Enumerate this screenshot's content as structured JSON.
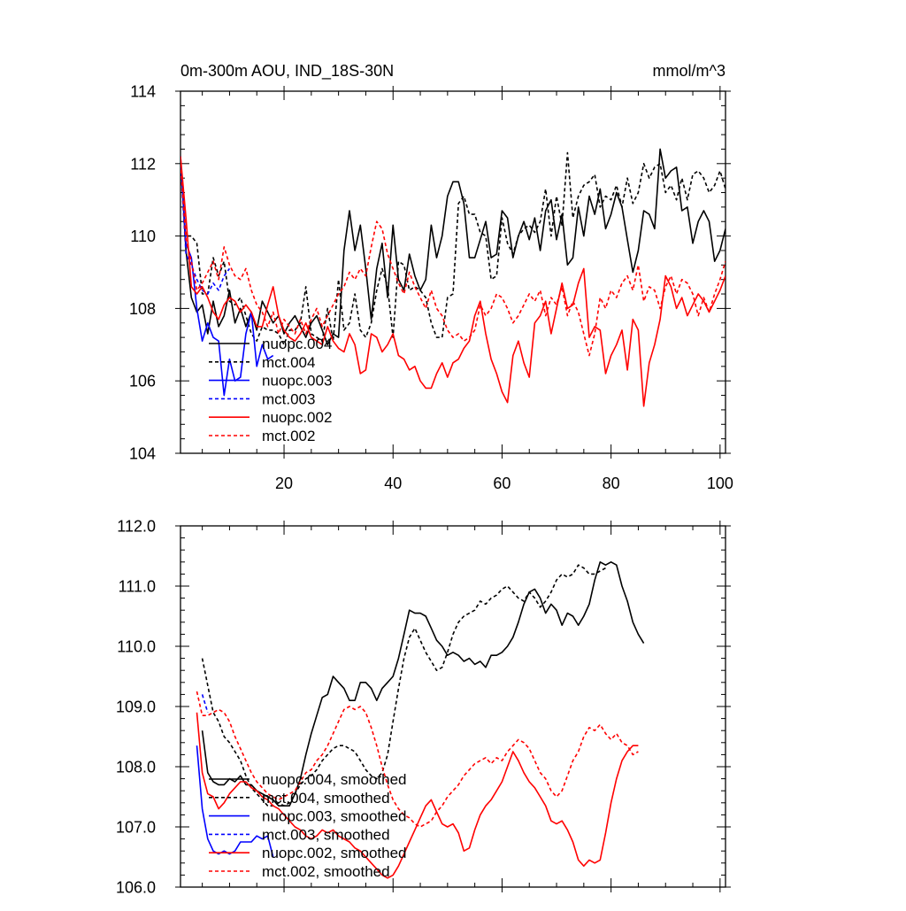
{
  "chart_data": [
    {
      "type": "line",
      "title": "0m-300m AOU, IND_18S-30N",
      "units": "mmol/m^3",
      "xlim": [
        1,
        101
      ],
      "ylim": [
        104,
        114
      ],
      "xticks": [
        20,
        40,
        60,
        80,
        100
      ],
      "xtick_labels": [
        "20",
        "40",
        "60",
        "80",
        "100"
      ],
      "yticks": [
        104,
        106,
        108,
        110,
        112,
        114
      ],
      "ytick_labels": [
        "104",
        "106",
        "108",
        "110",
        "112",
        "114"
      ],
      "legend_position": "bottom-left",
      "series": [
        {
          "name": "nuopc.004",
          "color": "#000000",
          "dashed": false,
          "x_start": 1,
          "values": [
            112.2,
            109.6,
            108.3,
            107.9,
            108.1,
            107.3,
            108.2,
            107.5,
            107.8,
            108.5,
            107.6,
            108.0,
            107.5,
            107.9,
            107.4,
            108.2,
            107.9,
            107.6,
            107.8,
            107.3,
            107.6,
            107.8,
            107.5,
            107.2,
            107.6,
            107.8,
            107.4,
            107.0,
            107.3,
            107.2,
            109.6,
            110.7,
            109.6,
            110.3,
            109.1,
            107.7,
            109.1,
            109.8,
            108.3,
            110.3,
            108.8,
            108.5,
            109.5,
            108.9,
            108.5,
            108.8,
            110.3,
            109.4,
            110.0,
            111.1,
            111.5,
            111.5,
            110.9,
            109.4,
            109.4,
            109.9,
            110.4,
            109.4,
            109.5,
            110.7,
            110.5,
            109.4,
            110.0,
            110.4,
            109.9,
            110.5,
            109.6,
            110.7,
            111.0,
            109.9,
            110.6,
            109.2,
            109.4,
            110.8,
            110.0,
            111.1,
            110.6,
            111.3,
            110.2,
            110.6,
            111.2,
            110.8,
            109.9,
            109.0,
            109.6,
            110.7,
            110.6,
            110.2,
            112.4,
            111.6,
            111.8,
            111.9,
            110.7,
            110.8,
            109.8,
            110.4,
            110.7,
            110.4,
            109.3,
            109.6,
            110.2
          ]
        },
        {
          "name": "mct.004",
          "color": "#000000",
          "dashed": true,
          "x_start": 1,
          "values": [
            112.0,
            110.0,
            110.0,
            109.8,
            108.4,
            108.4,
            109.4,
            108.9,
            109.3,
            108.2,
            108.1,
            108.3,
            107.8,
            107.3,
            107.1,
            107.5,
            107.4,
            107.4,
            107.3,
            107.0,
            107.4,
            107.4,
            107.6,
            108.6,
            107.3,
            107.2,
            107.1,
            108.0,
            107.1,
            108.8,
            107.4,
            107.6,
            108.4,
            107.4,
            107.2,
            107.6,
            108.5,
            109.1,
            108.6,
            107.2,
            109.3,
            109.2,
            108.5,
            108.6,
            108.5,
            108.3,
            107.6,
            107.2,
            107.2,
            108.3,
            108.4,
            110.9,
            111.1,
            110.6,
            110.6,
            110.1,
            110.0,
            108.8,
            108.9,
            110.5,
            109.8,
            109.5,
            110.0,
            110.2,
            110.3,
            110.1,
            110.4,
            111.3,
            110.0,
            111.1,
            110.3,
            112.3,
            110.5,
            111.1,
            111.4,
            111.5,
            111.7,
            110.8,
            111.1,
            111.0,
            111.4,
            110.8,
            111.6,
            110.9,
            111.2,
            112.0,
            111.6,
            111.9,
            112.0,
            111.2,
            111.4,
            111.0,
            111.6,
            111.0,
            111.7,
            111.8,
            111.6,
            111.2,
            111.4,
            111.8,
            111.3
          ]
        },
        {
          "name": "nuopc.003",
          "color": "#0000ff",
          "dashed": false,
          "x_start": 1,
          "values": [
            112.2,
            109.8,
            109.4,
            108.0,
            107.1,
            107.6,
            107.2,
            107.1,
            105.6,
            106.6,
            106.0,
            106.1,
            107.3,
            107.9,
            106.4,
            107.0,
            106.6,
            106.7
          ]
        },
        {
          "name": "mct.003",
          "color": "#0000ff",
          "dashed": true,
          "x_start": 1,
          "values": [
            112.0,
            109.5,
            109.2,
            108.8,
            108.5,
            108.4,
            108.7,
            108.5,
            108.9,
            109.1
          ]
        },
        {
          "name": "nuopc.002",
          "color": "#ff0000",
          "dashed": false,
          "x_start": 1,
          "values": [
            112.2,
            110.5,
            108.6,
            108.4,
            108.6,
            108.3,
            107.9,
            107.7,
            108.1,
            108.3,
            108.2,
            107.9,
            108.1,
            107.9,
            107.5,
            107.5,
            108.1,
            108.6,
            107.8,
            107.4,
            107.2,
            107.1,
            107.3,
            107.6,
            107.2,
            107.1,
            107.0,
            107.5,
            107.1,
            106.9,
            106.8,
            107.3,
            107.0,
            106.2,
            106.3,
            107.3,
            107.2,
            106.8,
            107.0,
            107.3,
            106.7,
            106.6,
            106.3,
            106.4,
            106.0,
            105.8,
            105.8,
            106.2,
            106.5,
            106.1,
            106.5,
            106.6,
            106.9,
            107.1,
            107.8,
            108.2,
            107.3,
            106.6,
            106.2,
            105.7,
            105.4,
            106.7,
            107.1,
            106.5,
            106.1,
            107.6,
            107.8,
            108.2,
            107.3,
            108.0,
            108.7,
            108.0,
            108.1,
            108.7,
            109.1,
            107.2,
            107.5,
            107.4,
            106.2,
            106.7,
            107.0,
            107.4,
            106.3,
            107.7,
            107.4,
            105.3,
            106.5,
            107.0,
            107.7,
            108.9,
            108.6,
            108.0,
            108.3,
            107.8,
            108.1,
            108.4,
            108.2,
            107.9,
            108.2,
            108.5,
            108.9
          ]
        },
        {
          "name": "mct.002",
          "color": "#ff0000",
          "dashed": true,
          "x_start": 1,
          "values": [
            112.0,
            109.9,
            109.3,
            108.5,
            108.7,
            109.0,
            109.3,
            108.8,
            109.7,
            109.2,
            108.9,
            108.8,
            109.1,
            108.5,
            108.1,
            107.9,
            107.5,
            107.9,
            107.3,
            107.7,
            107.5,
            107.3,
            107.7,
            107.3,
            107.7,
            108.0,
            107.5,
            107.8,
            108.1,
            108.4,
            108.6,
            109.0,
            108.8,
            109.1,
            108.9,
            109.7,
            110.4,
            110.2,
            109.5,
            109.1,
            108.7,
            108.4,
            109.0,
            108.6,
            108.3,
            108.0,
            108.5,
            108.0,
            107.8,
            107.4,
            107.2,
            107.3,
            107.1,
            107.2,
            107.4,
            108.1,
            107.8,
            108.0,
            108.4,
            108.3,
            108.0,
            107.6,
            107.8,
            108.1,
            108.4,
            108.2,
            108.5,
            107.8,
            108.3,
            108.1,
            108.6,
            107.8,
            108.2,
            107.9,
            107.3,
            106.7,
            107.3,
            108.3,
            108.0,
            108.5,
            108.3,
            108.7,
            108.9,
            108.5,
            109.2,
            108.2,
            108.6,
            108.5,
            108.0,
            108.6,
            108.9,
            108.4,
            108.8,
            108.7,
            108.4,
            107.8,
            108.3,
            107.9,
            108.4,
            108.8,
            109.3
          ]
        }
      ]
    },
    {
      "type": "line",
      "title": "",
      "xlim": [
        1,
        101
      ],
      "ylim": [
        106.0,
        112.0
      ],
      "xticks": [
        20,
        40,
        60,
        80,
        100
      ],
      "yticks": [
        106,
        107,
        108,
        109,
        110,
        111,
        112
      ],
      "ytick_labels": [
        "106.0",
        "107.0",
        "108.0",
        "109.0",
        "110.0",
        "111.0",
        "112.0"
      ],
      "legend_position": "bottom-left",
      "series": [
        {
          "name": "nuopc.004, smoothed",
          "color": "#000000",
          "dashed": false,
          "x_start": 5,
          "values": [
            108.6,
            107.9,
            107.75,
            107.7,
            107.7,
            107.8,
            107.75,
            107.85,
            107.7,
            107.7,
            107.6,
            107.55,
            107.5,
            107.45,
            107.35,
            107.35,
            107.35,
            107.55,
            107.8,
            108.2,
            108.55,
            108.85,
            109.15,
            109.2,
            109.5,
            109.4,
            109.3,
            109.1,
            109.1,
            109.4,
            109.4,
            109.3,
            109.1,
            109.3,
            109.4,
            109.5,
            109.8,
            110.2,
            110.6,
            110.55,
            110.55,
            110.5,
            110.3,
            110.1,
            110.0,
            109.85,
            109.9,
            109.85,
            109.75,
            109.8,
            109.7,
            109.75,
            109.65,
            109.85,
            109.85,
            109.9,
            110.0,
            110.15,
            110.4,
            110.7,
            110.9,
            110.95,
            110.8,
            110.55,
            110.7,
            110.6,
            110.35,
            110.55,
            110.5,
            110.35,
            110.5,
            110.7,
            111.1,
            111.4,
            111.35,
            111.4,
            111.35,
            111.0,
            110.75,
            110.4,
            110.2,
            110.05
          ]
        },
        {
          "name": "mct.004, smoothed",
          "color": "#000000",
          "dashed": true,
          "x_start": 5,
          "values": [
            109.8,
            109.35,
            108.9,
            108.75,
            108.5,
            108.4,
            108.25,
            108.1,
            107.85,
            107.65,
            107.55,
            107.45,
            107.35,
            107.35,
            107.4,
            107.35,
            107.4,
            107.55,
            107.7,
            107.8,
            107.85,
            107.95,
            108.1,
            108.2,
            108.3,
            108.35,
            108.35,
            108.3,
            108.25,
            108.1,
            107.95,
            107.85,
            107.8,
            107.9,
            108.2,
            108.75,
            109.3,
            109.8,
            110.15,
            110.3,
            110.1,
            109.9,
            109.75,
            109.6,
            109.65,
            109.9,
            110.2,
            110.4,
            110.5,
            110.55,
            110.6,
            110.75,
            110.7,
            110.8,
            110.85,
            110.95,
            111.0,
            110.9,
            110.8,
            110.75,
            110.9,
            110.8,
            110.65,
            110.75,
            110.9,
            111.1,
            111.2,
            111.15,
            111.2,
            111.35,
            111.3,
            111.2,
            111.2,
            111.25,
            111.3
          ]
        },
        {
          "name": "nuopc.003, smoothed",
          "color": "#0000ff",
          "dashed": false,
          "x_start": 4,
          "values": [
            108.35,
            107.3,
            106.8,
            106.6,
            106.55,
            106.6,
            106.55,
            106.6,
            106.75,
            106.75,
            106.75,
            106.85,
            106.8,
            106.85,
            106.5
          ]
        },
        {
          "name": "mct.003, smoothed",
          "color": "#0000ff",
          "dashed": true,
          "x_start": 5,
          "values": [
            109.2,
            108.9
          ]
        },
        {
          "name": "nuopc.002, smoothed",
          "color": "#ff0000",
          "dashed": false,
          "x_start": 4,
          "values": [
            108.9,
            107.9,
            107.55,
            107.5,
            107.3,
            107.4,
            107.55,
            107.65,
            107.75,
            107.75,
            107.65,
            107.6,
            107.5,
            107.45,
            107.35,
            107.3,
            107.2,
            107.1,
            107.0,
            106.95,
            106.85,
            106.8,
            106.85,
            106.95,
            106.9,
            106.95,
            106.85,
            106.8,
            106.75,
            106.65,
            106.6,
            106.5,
            106.4,
            106.3,
            106.2,
            106.15,
            106.2,
            106.35,
            106.55,
            106.75,
            106.95,
            107.15,
            107.35,
            107.45,
            107.25,
            107.05,
            107.0,
            107.05,
            106.9,
            106.6,
            106.65,
            106.95,
            107.2,
            107.35,
            107.45,
            107.6,
            107.75,
            108.0,
            108.25,
            108.1,
            107.9,
            107.75,
            107.65,
            107.5,
            107.35,
            107.1,
            107.05,
            107.1,
            106.95,
            106.75,
            106.45,
            106.35,
            106.45,
            106.4,
            106.45,
            106.9,
            107.4,
            107.8,
            108.1,
            108.25,
            108.35,
            108.35
          ]
        },
        {
          "name": "mct.002, smoothed",
          "color": "#ff0000",
          "dashed": true,
          "x_start": 4,
          "values": [
            109.25,
            108.85,
            108.85,
            108.9,
            108.95,
            108.9,
            108.75,
            108.5,
            108.3,
            108.1,
            107.9,
            107.75,
            107.65,
            107.55,
            107.5,
            107.45,
            107.5,
            107.55,
            107.6,
            107.75,
            107.9,
            107.95,
            108.1,
            108.2,
            108.35,
            108.55,
            108.75,
            108.95,
            109.0,
            108.95,
            109.0,
            108.9,
            108.65,
            108.35,
            108.0,
            107.7,
            107.45,
            107.3,
            107.2,
            107.15,
            107.05,
            107.0,
            107.05,
            107.1,
            107.25,
            107.35,
            107.5,
            107.6,
            107.7,
            107.85,
            107.95,
            108.05,
            108.1,
            108.15,
            108.05,
            108.15,
            108.1,
            108.25,
            108.35,
            108.45,
            108.4,
            108.3,
            108.1,
            107.9,
            107.8,
            107.6,
            107.5,
            107.6,
            107.85,
            108.1,
            108.25,
            108.5,
            108.65,
            108.6,
            108.7,
            108.55,
            108.45,
            108.55,
            108.4,
            108.35,
            108.2,
            108.25
          ]
        }
      ]
    }
  ]
}
